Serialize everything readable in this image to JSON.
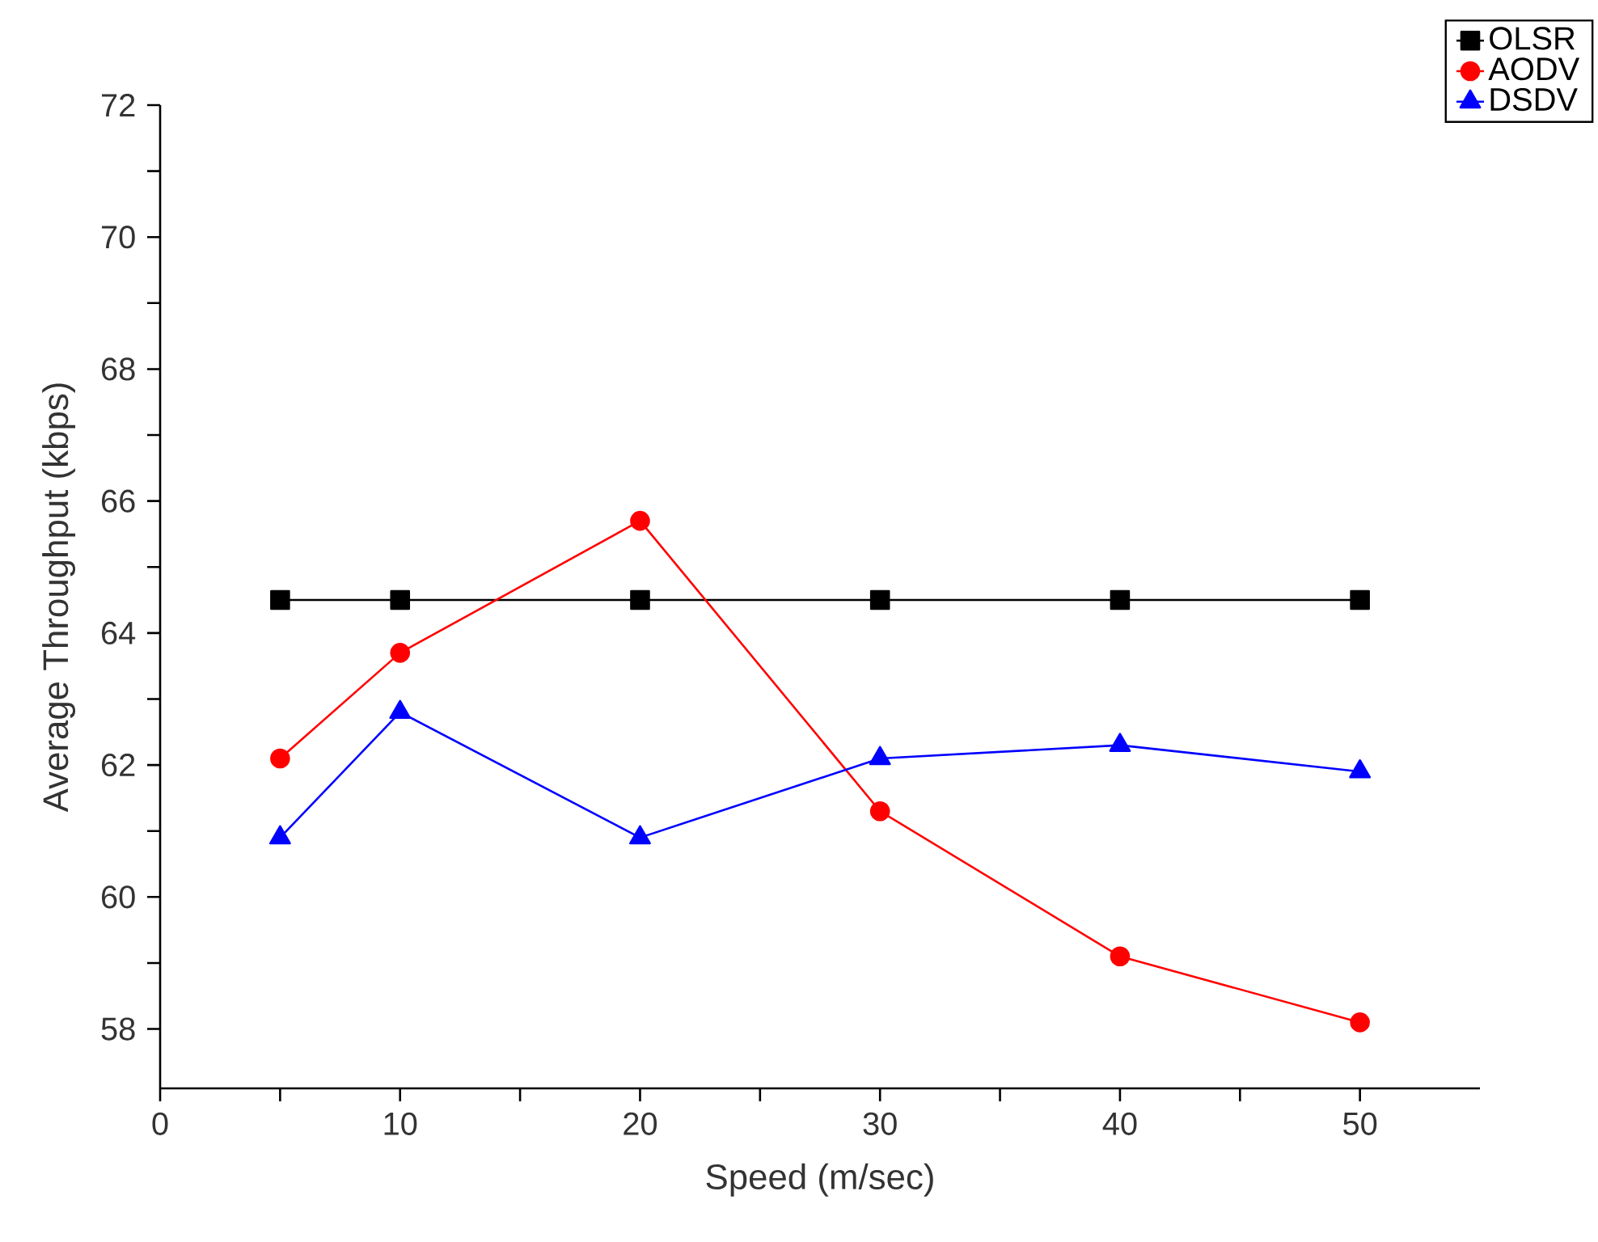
{
  "chart_data": {
    "type": "line",
    "xlabel": "Speed (m/sec)",
    "ylabel": "Average Throughput (kbps)",
    "x": [
      5,
      10,
      20,
      30,
      40,
      50
    ],
    "xlim": [
      0,
      55
    ],
    "ylim": [
      57.1,
      72
    ],
    "xticks": [
      0,
      {
        "value": 5,
        "label": null
      },
      10,
      {
        "value": 15,
        "label": null
      },
      20,
      {
        "value": 25,
        "label": null
      },
      30,
      {
        "value": 35,
        "label": null
      },
      40,
      {
        "value": 45,
        "label": null
      },
      50
    ],
    "yticks": [
      58,
      {
        "value": 59,
        "label": null
      },
      60,
      {
        "value": 61,
        "label": null
      },
      62,
      {
        "value": 63,
        "label": null
      },
      64,
      {
        "value": 65,
        "label": null
      },
      66,
      {
        "value": 67,
        "label": null
      },
      68,
      {
        "value": 69,
        "label": null
      },
      70,
      {
        "value": 71,
        "label": null
      },
      72
    ],
    "grid": false,
    "legend": "top right",
    "line_style": "solid",
    "series": [
      {
        "name": "OLSR",
        "color": "#000000",
        "marker": "square",
        "values": [
          64.5,
          64.5,
          64.5,
          64.5,
          64.5,
          64.5
        ]
      },
      {
        "name": "AODV",
        "color": "#ff0000",
        "marker": "circle",
        "values": [
          62.1,
          63.7,
          65.7,
          61.3,
          59.1,
          58.1
        ]
      },
      {
        "name": "DSDV",
        "color": "#0000ff",
        "marker": "triangle",
        "values": [
          60.9,
          62.8,
          60.9,
          62.1,
          62.3,
          61.9
        ]
      }
    ]
  }
}
